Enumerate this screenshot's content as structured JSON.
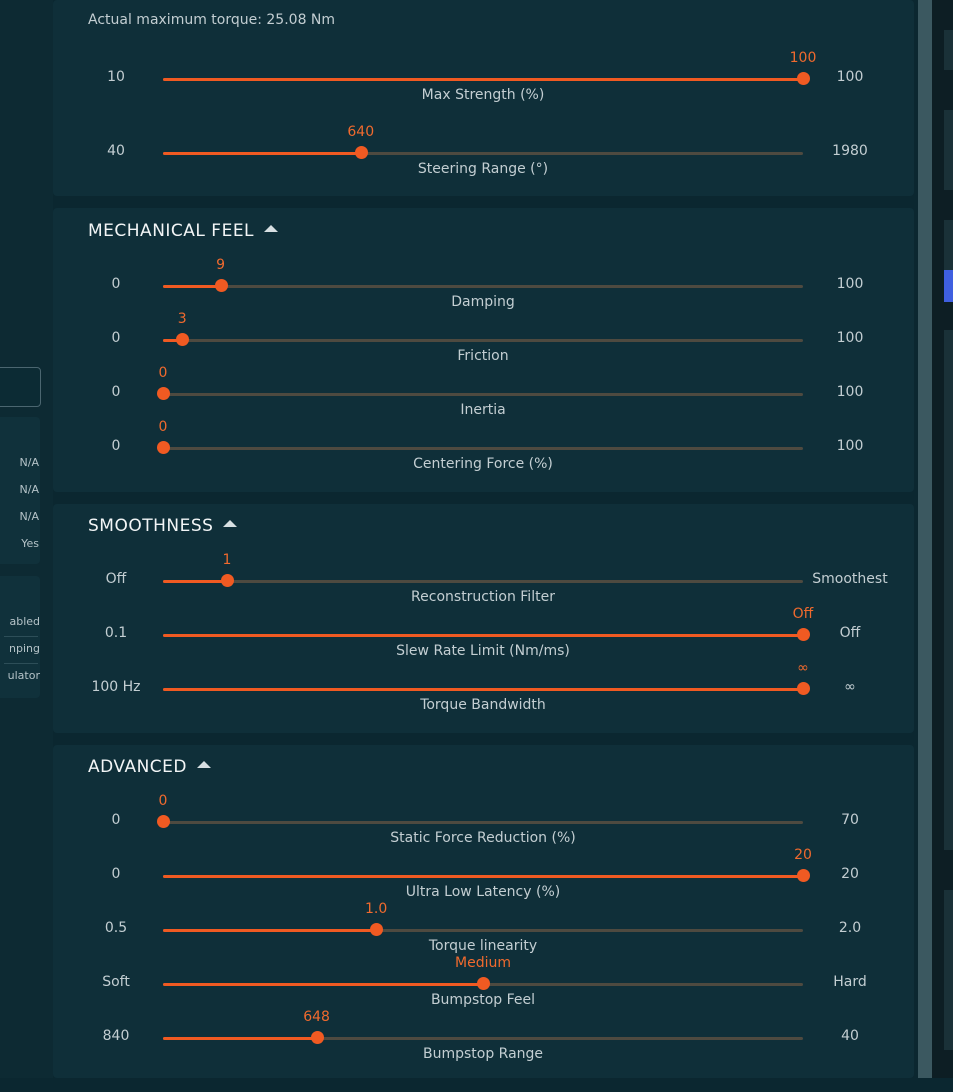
{
  "sidebar": {
    "status_values": [
      "N/A",
      "N/A",
      "N/A",
      "Yes"
    ],
    "truncated_items": [
      "abled",
      "nping",
      "ulator"
    ]
  },
  "strength_section": {
    "info": "Actual maximum torque: 25.08 Nm",
    "sliders": [
      {
        "name": "Max Strength (%)",
        "min": "10",
        "max": "100",
        "value": "100",
        "fraction": 1.0
      },
      {
        "name": "Steering Range (°)",
        "min": "40",
        "max": "1980",
        "value": "640",
        "fraction": 0.309
      }
    ]
  },
  "mechanical_feel": {
    "title": "MECHANICAL FEEL",
    "sliders": [
      {
        "name": "Damping",
        "min": "0",
        "max": "100",
        "value": "9",
        "fraction": 0.09
      },
      {
        "name": "Friction",
        "min": "0",
        "max": "100",
        "value": "3",
        "fraction": 0.03
      },
      {
        "name": "Inertia",
        "min": "0",
        "max": "100",
        "value": "0",
        "fraction": 0.0
      },
      {
        "name": "Centering Force (%)",
        "min": "0",
        "max": "100",
        "value": "0",
        "fraction": 0.0
      }
    ]
  },
  "smoothness": {
    "title": "SMOOTHNESS",
    "sliders": [
      {
        "name": "Reconstruction Filter",
        "min": "Off",
        "max": "Smoothest",
        "value": "1",
        "fraction": 0.1
      },
      {
        "name": "Slew Rate Limit (Nm/ms)",
        "min": "0.1",
        "max": "Off",
        "value": "Off",
        "fraction": 1.0
      },
      {
        "name": "Torque Bandwidth",
        "min": "100 Hz",
        "max": "∞",
        "value": "∞",
        "fraction": 1.0
      }
    ]
  },
  "advanced": {
    "title": "ADVANCED",
    "sliders": [
      {
        "name": "Static Force Reduction (%)",
        "min": "0",
        "max": "70",
        "value": "0",
        "fraction": 0.0
      },
      {
        "name": "Ultra Low Latency (%)",
        "min": "0",
        "max": "20",
        "value": "20",
        "fraction": 1.0
      },
      {
        "name": "Torque linearity",
        "min": "0.5",
        "max": "2.0",
        "value": "1.0",
        "fraction": 0.333
      },
      {
        "name": "Bumpstop Feel",
        "min": "Soft",
        "max": "Hard",
        "value": "Medium",
        "fraction": 0.5
      },
      {
        "name": "Bumpstop Range",
        "min": "840",
        "max": "40",
        "value": "648",
        "fraction": 0.24
      }
    ]
  },
  "colors": {
    "accent": "#f05a22",
    "card_bg": "#0f2f39",
    "page_bg": "#0b2730",
    "track": "#4e4a40"
  }
}
